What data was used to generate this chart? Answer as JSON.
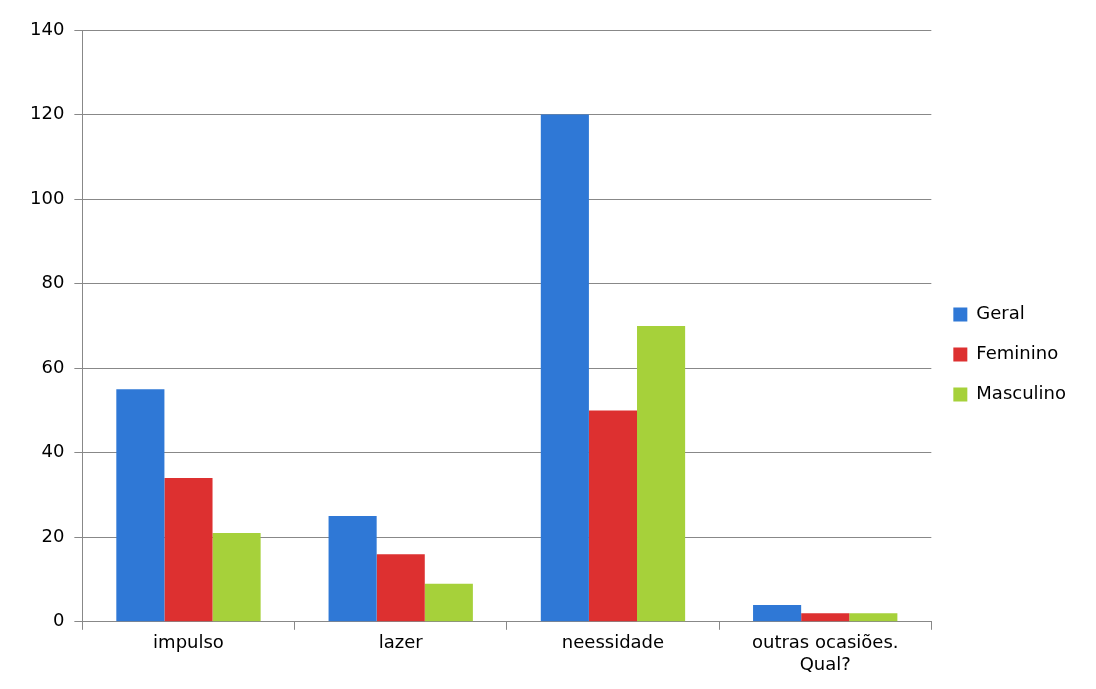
{
  "chart_data": {
    "type": "bar",
    "categories": [
      "impulso",
      "lazer",
      "neessidade",
      "outras ocasiões. Qual?"
    ],
    "series": [
      {
        "name": "Geral",
        "color": "#2f78d6",
        "values": [
          55,
          25,
          120,
          4
        ]
      },
      {
        "name": "Feminino",
        "color": "#dd3030",
        "values": [
          34,
          16,
          50,
          2
        ]
      },
      {
        "name": "Masculino",
        "color": "#a6d13a",
        "values": [
          21,
          9,
          70,
          2
        ]
      }
    ],
    "ylim": [
      0,
      140
    ],
    "yticks": [
      0,
      20,
      40,
      60,
      80,
      100,
      120,
      140
    ],
    "grid": "y",
    "legend": "right"
  }
}
